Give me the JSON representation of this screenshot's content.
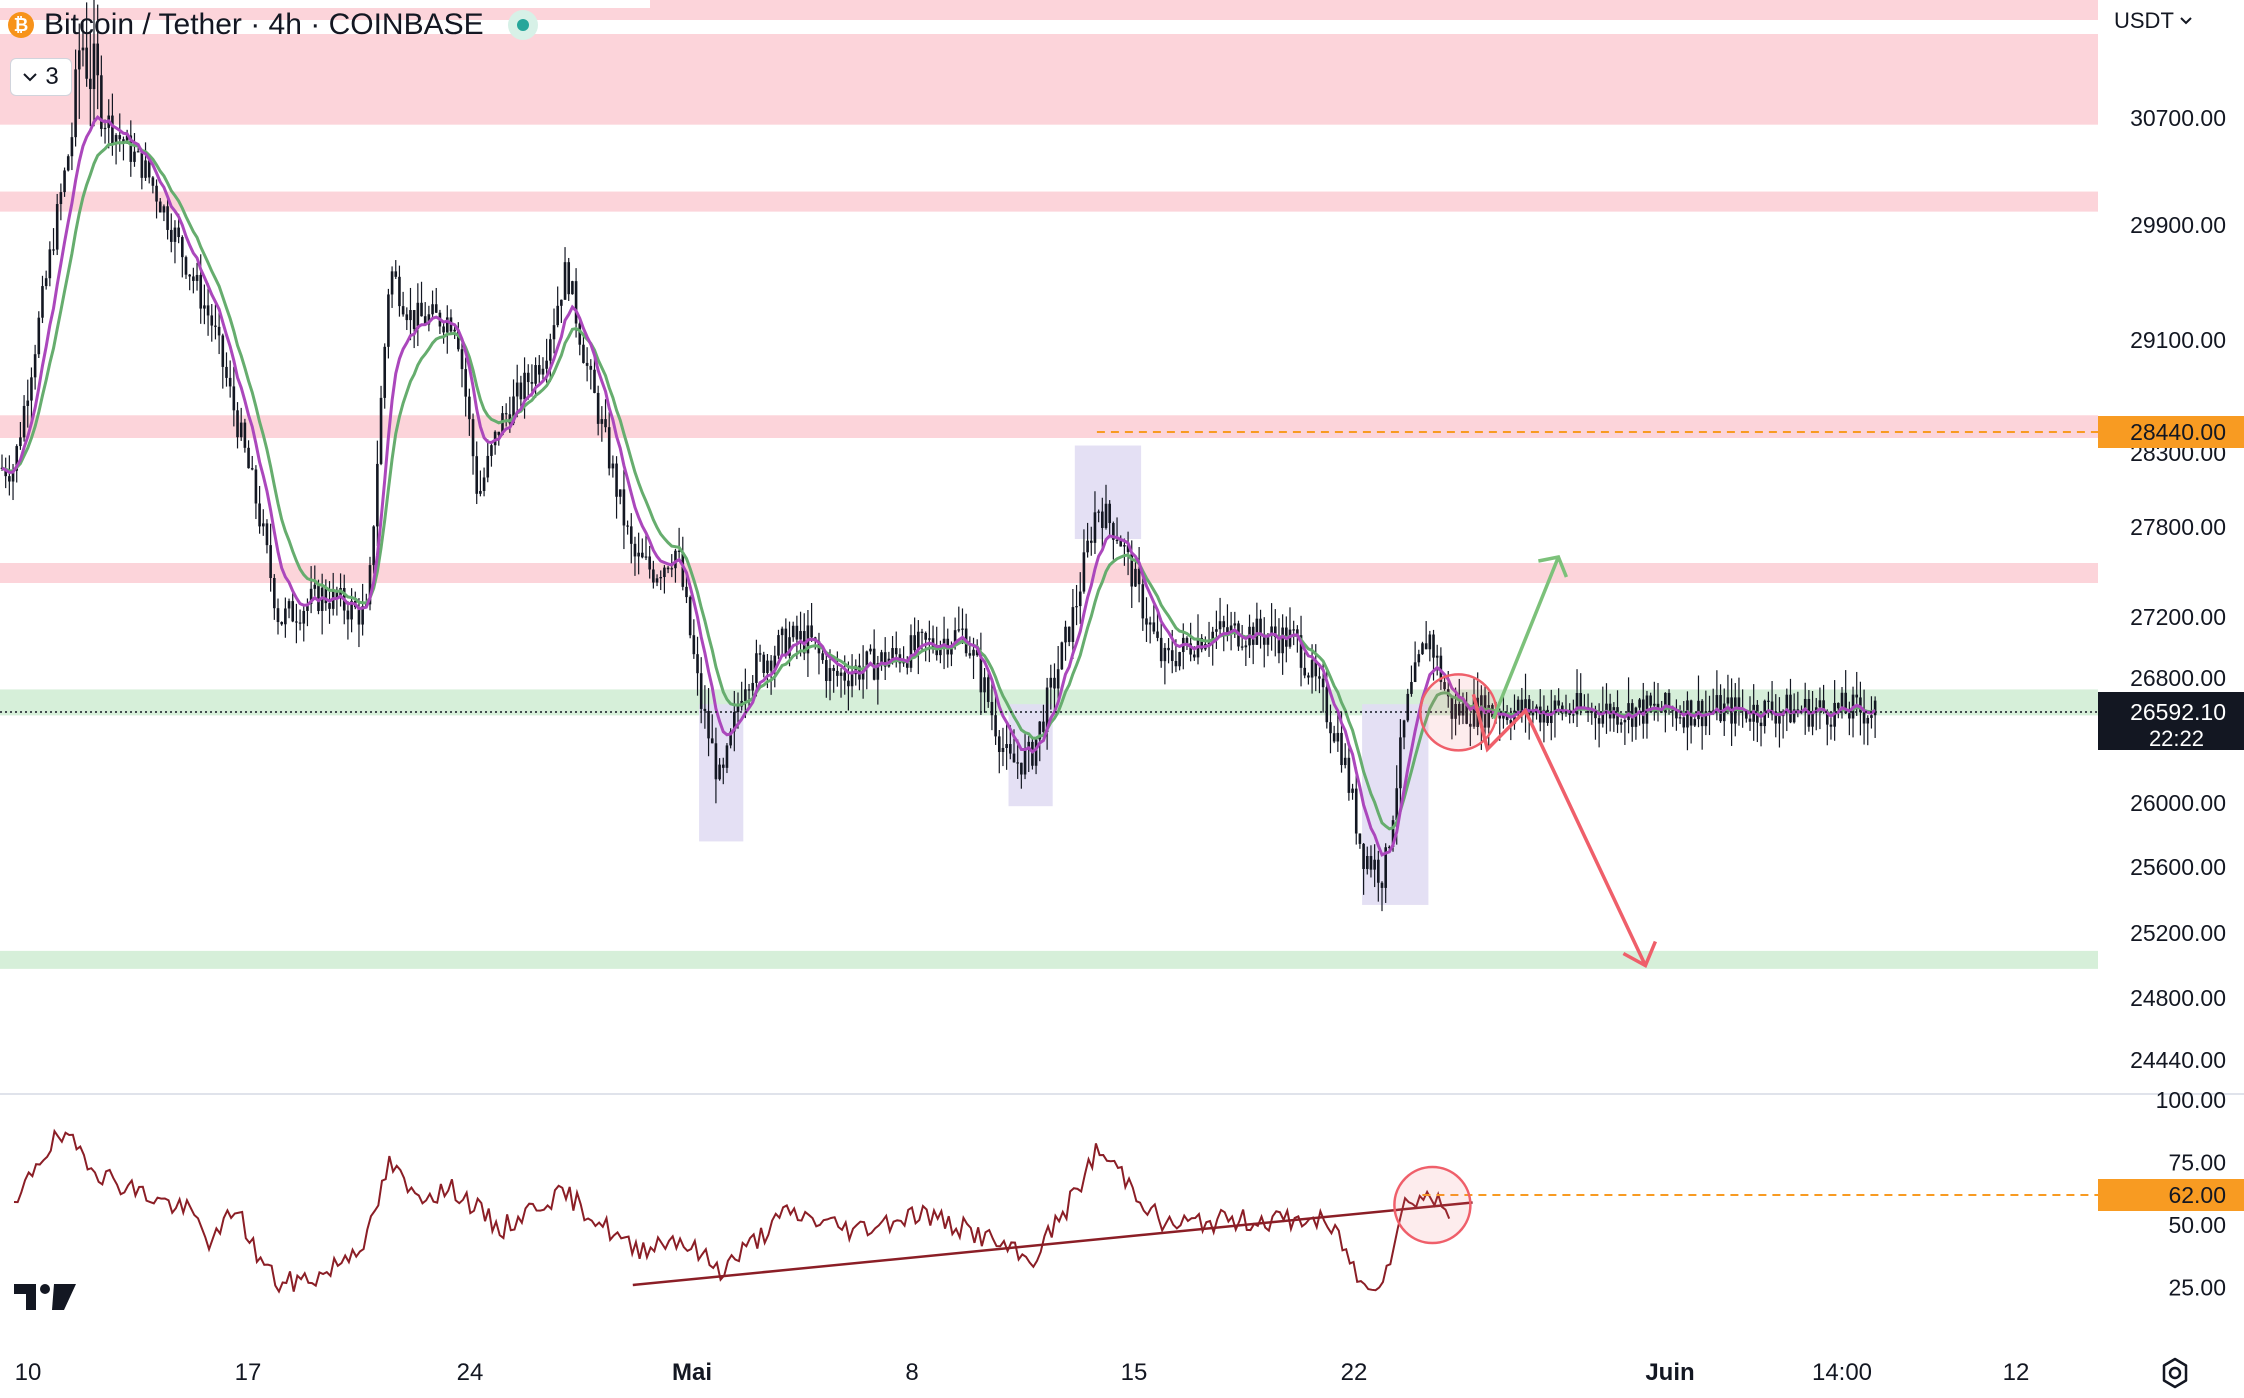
{
  "header": {
    "coin_icon": "bitcoin-icon",
    "title": "Bitcoin / Tether · 4h · COINBASE",
    "collapse_count": "3",
    "currency": "USDT"
  },
  "colors": {
    "resistance_zone": "#fcd4da",
    "support_zone": "#d6efd9",
    "highlight_box": "#e1ddf3",
    "ema_fast": "#ab47bc",
    "ema_slow": "#66ad6e",
    "candle": "#131722",
    "rsi_line": "#8b1e26",
    "price_tag": "#f89b22",
    "current_tag": "#131722",
    "up_arrow": "#7cc17a",
    "down_arrow": "#ef5f6a"
  },
  "price_axis": {
    "labels": [
      "30700.00",
      "29900.00",
      "29100.00",
      "28300.00",
      "27800.00",
      "27200.00",
      "26800.00",
      "26000.00",
      "25600.00",
      "25200.00",
      "24800.00",
      "24440.00"
    ],
    "level_tag": "28440.00",
    "current_price": "26592.10",
    "countdown": "22:22"
  },
  "rsi_axis": {
    "labels": [
      "100.00",
      "75.00",
      "50.00",
      "25.00"
    ],
    "level_tag": "62.00"
  },
  "time_axis": {
    "labels": [
      "10",
      "17",
      "24",
      "Mai",
      "8",
      "15",
      "22",
      "Juin",
      "14:00",
      "12"
    ]
  },
  "chart_data": {
    "type": "candlestick",
    "symbol": "Bitcoin / Tether",
    "interval": "4h",
    "exchange": "COINBASE",
    "current_price": 26592.1,
    "resistance_zones": [
      [
        30650,
        30920
      ],
      [
        30000,
        30150
      ],
      [
        28400,
        28560
      ],
      [
        27430,
        27560
      ]
    ],
    "support_zones": [
      [
        26570,
        26730
      ],
      [
        24990,
        25090
      ]
    ],
    "highlight_boxes": [
      {
        "from": "Mai 11",
        "to": "Mai 13",
        "low": 25760,
        "high": 26640
      },
      {
        "from": "Mai 25",
        "to": "Mai 27",
        "low": 25980,
        "high": 26640
      },
      {
        "from": "Mai 28",
        "to": "Mai 31",
        "low": 27720,
        "high": 28350
      },
      {
        "from": "Juin 10",
        "to": "Juin 13",
        "low": 25370,
        "high": 26640
      }
    ],
    "swing_points": [
      {
        "date": "Avr 10",
        "price": 28200
      },
      {
        "date": "Avr 13",
        "price": 30920
      },
      {
        "date": "Avr 16",
        "price": 30300
      },
      {
        "date": "Avr 19",
        "price": 29200
      },
      {
        "date": "Avr 21",
        "price": 27950
      },
      {
        "date": "Avr 22",
        "price": 27180
      },
      {
        "date": "Avr 24",
        "price": 27350
      },
      {
        "date": "Avr 26",
        "price": 27200
      },
      {
        "date": "Avr 27",
        "price": 29600
      },
      {
        "date": "Avr 28",
        "price": 29250
      },
      {
        "date": "Avr 30",
        "price": 29250
      },
      {
        "date": "Mai 1",
        "price": 28000
      },
      {
        "date": "Mai 2",
        "price": 28500
      },
      {
        "date": "Mai 4",
        "price": 29000
      },
      {
        "date": "Mai 5",
        "price": 29600
      },
      {
        "date": "Mai 6",
        "price": 28850
      },
      {
        "date": "Mai 8",
        "price": 27600
      },
      {
        "date": "Mai 9",
        "price": 27500
      },
      {
        "date": "Mai 10",
        "price": 27650
      },
      {
        "date": "Mai 11",
        "price": 26700
      },
      {
        "date": "Mai 12",
        "price": 26100
      },
      {
        "date": "Mai 13",
        "price": 26800
      },
      {
        "date": "Mai 15",
        "price": 27050
      },
      {
        "date": "Mai 16",
        "price": 27050
      },
      {
        "date": "Mai 17",
        "price": 26800
      },
      {
        "date": "Mai 19",
        "price": 26900
      },
      {
        "date": "Mai 20",
        "price": 26950
      },
      {
        "date": "Mai 21",
        "price": 27000
      },
      {
        "date": "Mai 23",
        "price": 27100
      },
      {
        "date": "Mai 24",
        "price": 26700
      },
      {
        "date": "Mai 25",
        "price": 26250
      },
      {
        "date": "Mai 26",
        "price": 26300
      },
      {
        "date": "Mai 27",
        "price": 26750
      },
      {
        "date": "Mai 28",
        "price": 27250
      },
      {
        "date": "Mai 29",
        "price": 27950
      },
      {
        "date": "Mai 30",
        "price": 27750
      },
      {
        "date": "Mai 31",
        "price": 27300
      },
      {
        "date": "Juin 1",
        "price": 26900
      },
      {
        "date": "Juin 3",
        "price": 27100
      },
      {
        "date": "Juin 5",
        "price": 27100
      },
      {
        "date": "Juin 7",
        "price": 27050
      },
      {
        "date": "Juin 9",
        "price": 26400
      },
      {
        "date": "Juin 10",
        "price": 25700
      },
      {
        "date": "Juin 11",
        "price": 25550
      },
      {
        "date": "Juin 12",
        "price": 26600
      },
      {
        "date": "Juin 13",
        "price": 27100
      },
      {
        "date": "Juin 14",
        "price": 26600
      }
    ],
    "rsi": {
      "level": 62.0,
      "points": [
        {
          "date": "Avr 10",
          "value": 55
        },
        {
          "date": "Avr 11",
          "value": 75
        },
        {
          "date": "Avr 12",
          "value": 85
        },
        {
          "date": "Avr 13",
          "value": 80
        },
        {
          "date": "Avr 14",
          "value": 70
        },
        {
          "date": "Avr 16",
          "value": 62
        },
        {
          "date": "Avr 18",
          "value": 55
        },
        {
          "date": "Avr 19",
          "value": 42
        },
        {
          "date": "Avr 20",
          "value": 58
        },
        {
          "date": "Avr 21",
          "value": 38
        },
        {
          "date": "Avr 22",
          "value": 26
        },
        {
          "date": "Avr 24",
          "value": 30
        },
        {
          "date": "Avr 26",
          "value": 45
        },
        {
          "date": "Avr 27",
          "value": 75
        },
        {
          "date": "Avr 28",
          "value": 62
        },
        {
          "date": "Avr 30",
          "value": 64
        },
        {
          "date": "Mai 2",
          "value": 48
        },
        {
          "date": "Mai 4",
          "value": 60
        },
        {
          "date": "Mai 5",
          "value": 62
        },
        {
          "date": "Mai 6",
          "value": 55
        },
        {
          "date": "Mai 8",
          "value": 40
        },
        {
          "date": "Mai 10",
          "value": 45
        },
        {
          "date": "Mai 12",
          "value": 32
        },
        {
          "date": "Mai 15",
          "value": 55
        },
        {
          "date": "Mai 18",
          "value": 48
        },
        {
          "date": "Mai 21",
          "value": 55
        },
        {
          "date": "Mai 24",
          "value": 45
        },
        {
          "date": "Mai 26",
          "value": 35
        },
        {
          "date": "Mai 28",
          "value": 62
        },
        {
          "date": "Mai 29",
          "value": 80
        },
        {
          "date": "Mai 30",
          "value": 72
        },
        {
          "date": "Juin 1",
          "value": 50
        },
        {
          "date": "Juin 4",
          "value": 52
        },
        {
          "date": "Juin 8",
          "value": 52
        },
        {
          "date": "Juin 9",
          "value": 45
        },
        {
          "date": "Juin 10",
          "value": 25
        },
        {
          "date": "Juin 11",
          "value": 30
        },
        {
          "date": "Juin 12",
          "value": 60
        },
        {
          "date": "Juin 13",
          "value": 62
        },
        {
          "date": "Juin 14",
          "value": 55
        }
      ],
      "trendline": [
        {
          "date": "Mai 8",
          "value": 26
        },
        {
          "date": "Juin 15",
          "value": 59
        }
      ]
    },
    "projection": {
      "bullish_target": 27600,
      "bearish_target": 25000
    }
  }
}
